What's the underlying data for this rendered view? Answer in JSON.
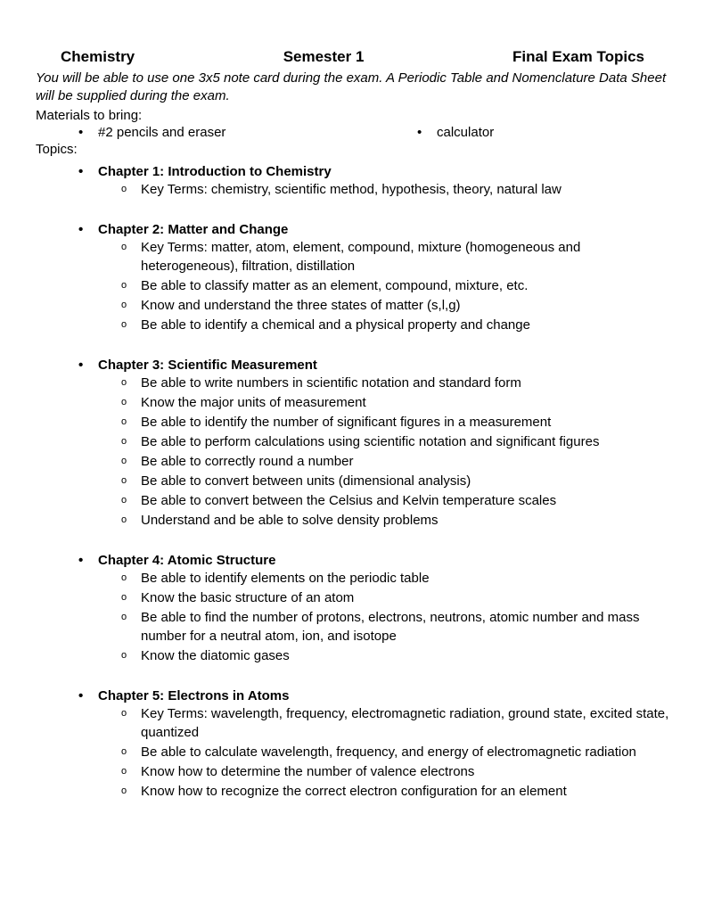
{
  "header": {
    "left": "Chemistry",
    "center": "Semester 1",
    "right": "Final Exam Topics"
  },
  "intro": "You will be able to use one 3x5 note card during the exam.  A Periodic Table and Nomenclature Data Sheet will be supplied during the exam.",
  "materials_label": "Materials to bring:",
  "materials": {
    "left": "#2 pencils and eraser",
    "right": "calculator"
  },
  "topics_label": "Topics:",
  "chapters": [
    {
      "title": "Chapter 1: Introduction to Chemistry",
      "items": [
        "Key Terms: chemistry, scientific method, hypothesis, theory, natural law"
      ]
    },
    {
      "title": "Chapter 2: Matter and Change",
      "items": [
        "Key Terms: matter, atom, element, compound, mixture (homogeneous and heterogeneous), filtration, distillation",
        "Be able to classify matter as an element, compound, mixture, etc.",
        "Know and understand the three states of matter (s,l,g)",
        "Be able to identify a chemical and a physical property and change"
      ]
    },
    {
      "title": "Chapter 3: Scientific Measurement",
      "items": [
        "Be able to write numbers in scientific notation and standard form",
        "Know the major units of measurement",
        "Be able to identify the number of significant figures in a measurement",
        "Be able to perform calculations using scientific notation and significant figures",
        "Be able to correctly round a number",
        "Be able to convert between units (dimensional analysis)",
        "Be able to convert between the Celsius and Kelvin temperature scales",
        "Understand and be able to solve density problems"
      ]
    },
    {
      "title": "Chapter 4: Atomic Structure",
      "items": [
        "Be able to identify elements on the periodic table",
        "Know the basic structure of an atom",
        "Be able to find the number of protons, electrons, neutrons, atomic number and mass number for a neutral atom, ion, and isotope",
        "Know the diatomic gases"
      ]
    },
    {
      "title": "Chapter 5: Electrons in Atoms",
      "items": [
        "Key Terms: wavelength, frequency, electromagnetic radiation, ground state, excited state, quantized",
        "Be able to calculate wavelength, frequency, and energy of electromagnetic radiation",
        "Know how to determine the number of valence electrons",
        "Know how to recognize the correct electron configuration for an element"
      ]
    }
  ]
}
